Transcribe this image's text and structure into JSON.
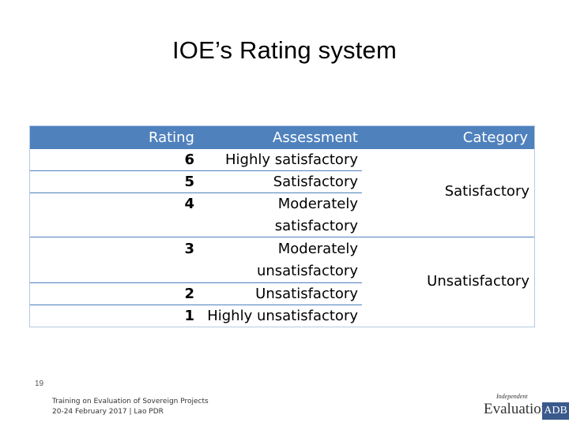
{
  "slide": {
    "title": "IOE’s Rating system",
    "page_number": "19",
    "footer_line1": "Training on Evaluation of Sovereign Projects",
    "footer_line2": "20-24 February 2017 | Lao PDR"
  },
  "table": {
    "headers": {
      "rating": "Rating",
      "assessment": "Assessment",
      "category": "Category"
    },
    "rows": [
      {
        "rating": "6",
        "assessment": [
          "Highly satisfactory"
        ]
      },
      {
        "rating": "5",
        "assessment": [
          "Satisfactory"
        ]
      },
      {
        "rating": "4",
        "assessment": [
          "Moderately",
          "satisfactory"
        ]
      },
      {
        "rating": "3",
        "assessment": [
          "Moderately",
          "unsatisfactory"
        ]
      },
      {
        "rating": "2",
        "assessment": [
          "Unsatisfactory"
        ]
      },
      {
        "rating": "1",
        "assessment": [
          "Highly unsatisfactory"
        ]
      }
    ],
    "categories": [
      "Satisfactory",
      "Unsatisfactory"
    ]
  },
  "logo": {
    "small": "Independent",
    "main": "Evaluation",
    "box": "ADB"
  },
  "colors": {
    "header_bg": "#4f81bd",
    "border": "#b7c9e2"
  }
}
